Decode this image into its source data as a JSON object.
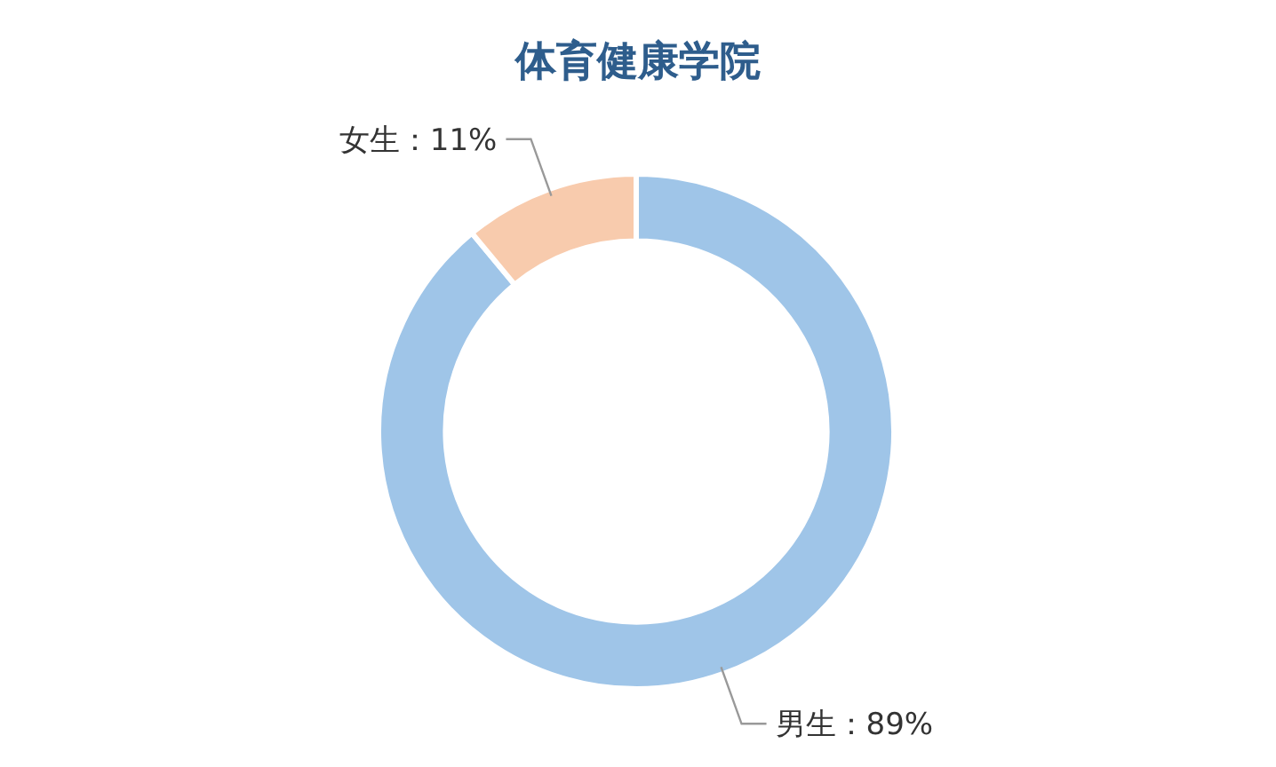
{
  "chart_data": {
    "type": "donut",
    "title": "体育健康学院",
    "categories": [
      "男生",
      "女生"
    ],
    "values": [
      89,
      11
    ],
    "colors": [
      "#9fc5e8",
      "#f8cbad"
    ],
    "value_labels": [
      "：89%",
      "：11%"
    ]
  }
}
